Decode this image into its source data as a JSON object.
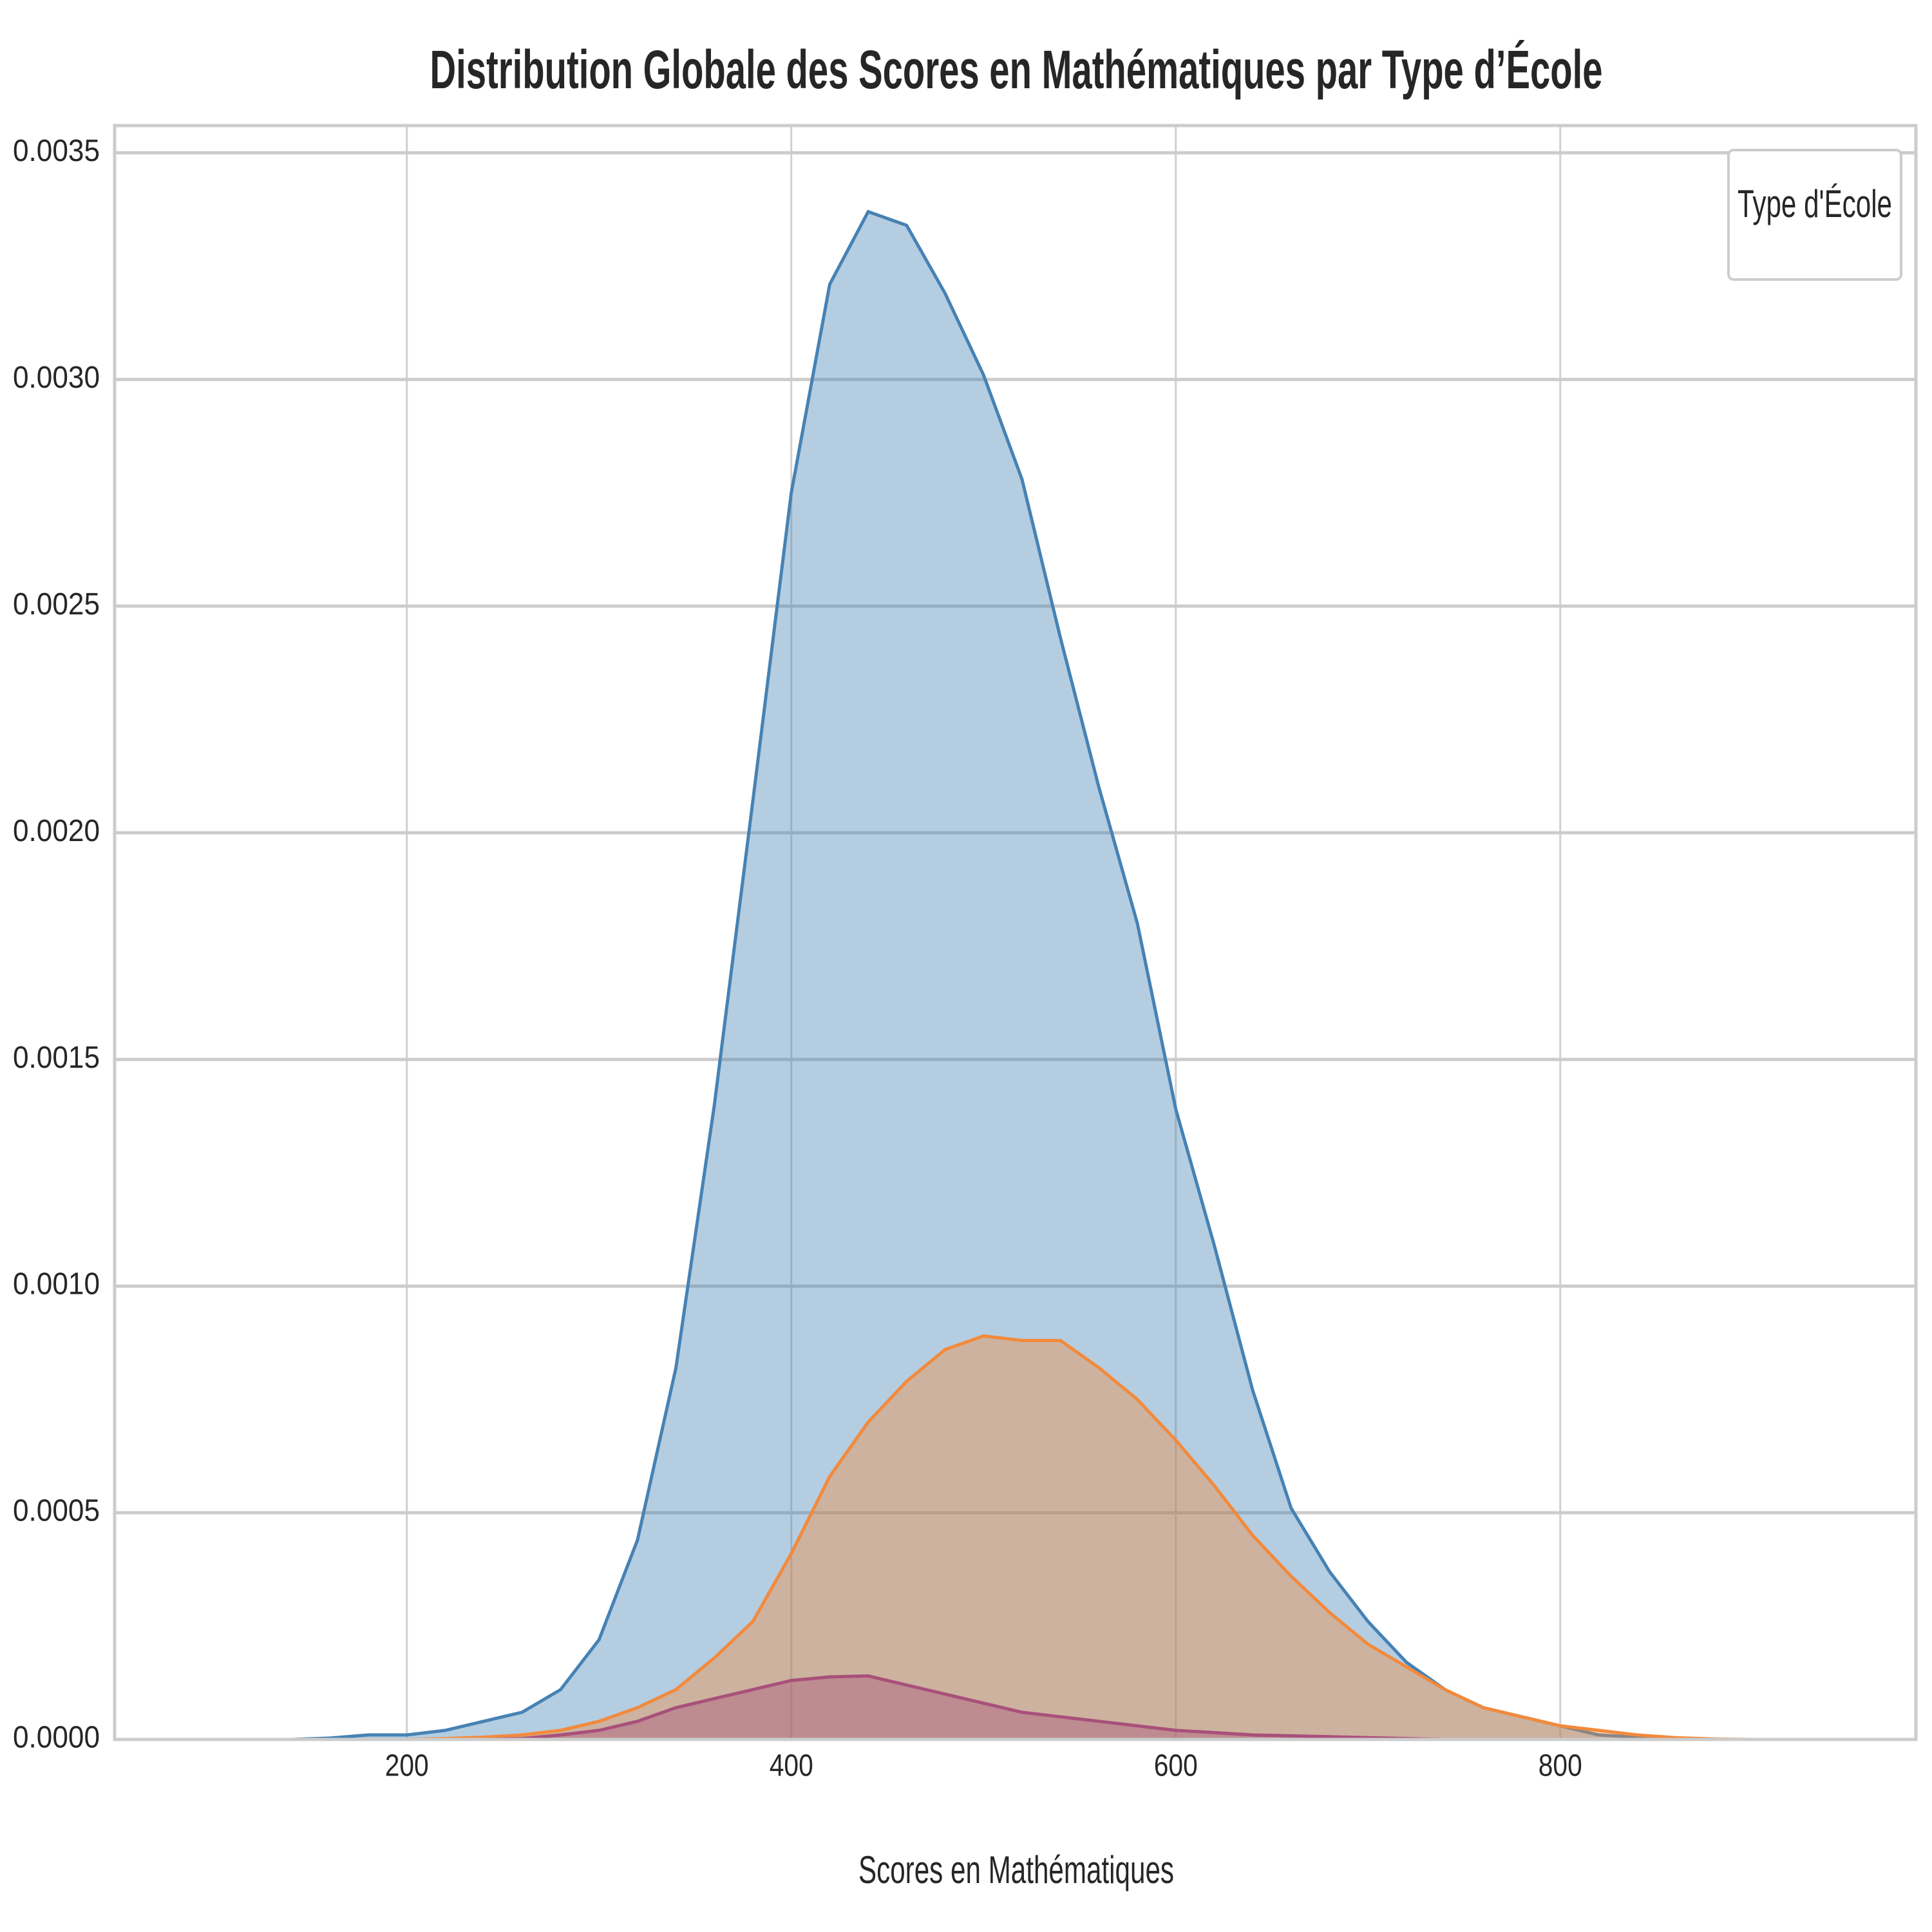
{
  "chart_data": {
    "type": "area",
    "title": "Distribution Globale des Scores en Mathématiques par Type d’École",
    "x_label": "Scores en Mathématiques",
    "legend_title": "Type d'École",
    "legend_position": "upper right",
    "grid": true,
    "x": [
      140,
      160,
      180,
      200,
      220,
      240,
      260,
      280,
      300,
      320,
      340,
      360,
      380,
      400,
      420,
      440,
      460,
      480,
      500,
      520,
      540,
      560,
      580,
      600,
      620,
      640,
      660,
      680,
      700,
      720,
      740,
      760,
      780,
      800,
      820,
      840,
      860,
      880,
      900
    ],
    "series": [
      {
        "color": "#4682b4",
        "values": [
          0,
          3e-06,
          1e-05,
          1e-05,
          2e-05,
          4e-05,
          6e-05,
          0.00011,
          0.00022,
          0.00044,
          0.00082,
          0.0014,
          0.00207,
          0.00275,
          0.00321,
          0.00337,
          0.00334,
          0.00319,
          0.00301,
          0.00278,
          0.00243,
          0.0021,
          0.0018,
          0.00139,
          0.00109,
          0.00077,
          0.00051,
          0.00037,
          0.00026,
          0.00017,
          0.00011,
          7e-05,
          5e-05,
          3e-05,
          1e-05,
          5e-06,
          2e-06,
          0,
          0
        ]
      },
      {
        "color": "#f28a3c",
        "values": [
          0,
          0,
          0,
          0,
          2e-06,
          5e-06,
          1e-05,
          2e-05,
          4e-05,
          7e-05,
          0.00011,
          0.00018,
          0.00026,
          0.00041,
          0.00058,
          0.0007,
          0.00079,
          0.00086,
          0.00089,
          0.00088,
          0.00088,
          0.00082,
          0.00075,
          0.00066,
          0.00056,
          0.00045,
          0.00036,
          0.00028,
          0.00021,
          0.00016,
          0.00011,
          7e-05,
          5e-05,
          3e-05,
          2e-05,
          1e-05,
          4e-06,
          1e-06,
          0
        ]
      },
      {
        "color": "#a8507a",
        "values": [
          0,
          0,
          0,
          0,
          0,
          0,
          2e-06,
          1e-05,
          2e-05,
          4e-05,
          7e-05,
          9e-05,
          0.00011,
          0.00013,
          0.000138,
          0.00014,
          0.00012,
          0.0001,
          8e-05,
          6e-05,
          5e-05,
          4e-05,
          3e-05,
          2e-05,
          1.5e-05,
          1e-05,
          8e-06,
          6e-06,
          4e-06,
          2e-06,
          0,
          0,
          0,
          0,
          0,
          0,
          0,
          0,
          0
        ]
      }
    ],
    "xlim": [
      48,
      985
    ],
    "xticks": [
      200,
      400,
      600,
      800
    ],
    "ylim": [
      0,
      0.00356
    ],
    "yticks": [
      {
        "value": 0,
        "label": "0.0000"
      },
      {
        "value": 0.0005,
        "label": "0.0005"
      },
      {
        "value": 0.001,
        "label": "0.0010"
      },
      {
        "value": 0.0015,
        "label": "0.0015"
      },
      {
        "value": 0.002,
        "label": "0.0020"
      },
      {
        "value": 0.0025,
        "label": "0.0025"
      },
      {
        "value": 0.003,
        "label": "0.0030"
      },
      {
        "value": 0.0035,
        "label": "0.0035"
      }
    ]
  }
}
